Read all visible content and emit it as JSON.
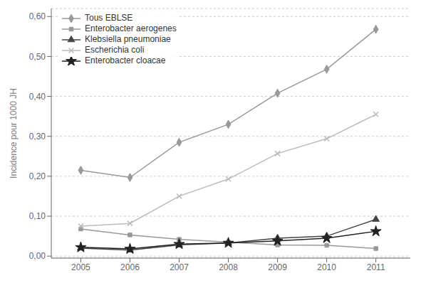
{
  "chart_data": {
    "type": "line",
    "ylabel": "Incidence pour 1000 JH",
    "x": [
      2005,
      2006,
      2007,
      2008,
      2009,
      2010,
      2011
    ],
    "xlim": [
      2004.4,
      2011.7
    ],
    "xticks": [
      2005,
      2006,
      2007,
      2008,
      2009,
      2010,
      2011
    ],
    "ylim": [
      -0.005,
      0.62
    ],
    "yticks": [
      {
        "value": 0.0,
        "label": "0,00"
      },
      {
        "value": 0.1,
        "label": "0,10"
      },
      {
        "value": 0.2,
        "label": "0,20"
      },
      {
        "value": 0.3,
        "label": "0,30"
      },
      {
        "value": 0.4,
        "label": "0,40"
      },
      {
        "value": 0.5,
        "label": "0,50"
      },
      {
        "value": 0.6,
        "label": "0,60"
      }
    ],
    "grid": true,
    "legend": "upper left",
    "series": [
      {
        "name": "Tous EBLSE",
        "color": "#999999",
        "marker": "diamond",
        "line_style": "solid",
        "values": [
          0.215,
          0.197,
          0.285,
          0.33,
          0.408,
          0.468,
          0.568
        ]
      },
      {
        "name": "Enterobacter aerogenes",
        "color": "#999999",
        "marker": "square",
        "line_style": "solid",
        "values": [
          0.068,
          0.053,
          0.042,
          0.035,
          0.028,
          0.027,
          0.019
        ]
      },
      {
        "name": "Klebsiella pneumoniae",
        "color": "#444444",
        "marker": "triangle",
        "line_style": "solid",
        "values": [
          0.02,
          0.015,
          0.028,
          0.033,
          0.045,
          0.05,
          0.092
        ]
      },
      {
        "name": "Escherichia coli",
        "color": "#bbbbbb",
        "marker": "x",
        "line_style": "solid",
        "values": [
          0.075,
          0.082,
          0.15,
          0.193,
          0.257,
          0.294,
          0.355
        ]
      },
      {
        "name": "Enterobacter cloacae",
        "color": "#222222",
        "marker": "star",
        "line_style": "solid",
        "values": [
          0.022,
          0.018,
          0.03,
          0.033,
          0.038,
          0.045,
          0.062
        ]
      }
    ]
  }
}
